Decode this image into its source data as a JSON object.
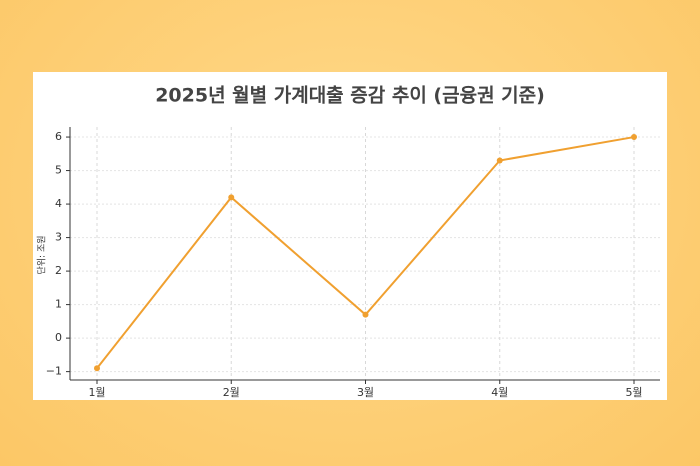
{
  "chart_data": {
    "type": "line",
    "title": "2025년 월별 가계대출 증감 추이 (금융권 기준)",
    "y_label": "단위: 조원",
    "categories": [
      "1월",
      "2월",
      "3월",
      "4월",
      "5월"
    ],
    "values": [
      -0.9,
      4.2,
      0.7,
      5.3,
      6.0
    ],
    "color": "#f0a030",
    "ylim": [
      -1.25,
      6.3
    ],
    "yticks": [
      {
        "value": -1,
        "label": "−1"
      },
      0,
      1,
      2,
      3,
      4,
      5,
      6
    ],
    "grid": true
  }
}
